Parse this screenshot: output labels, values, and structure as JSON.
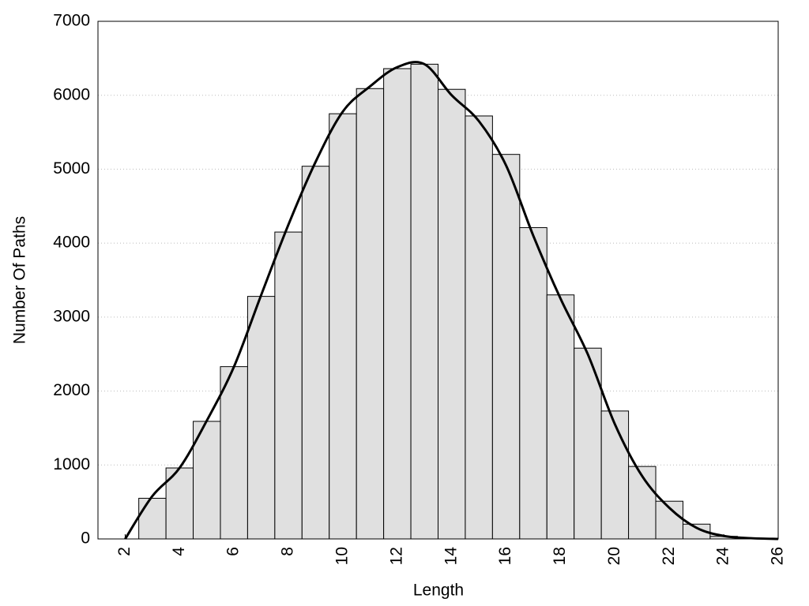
{
  "chart_data": {
    "type": "histogram",
    "xlabel": "Length",
    "ylabel": "Number Of Paths",
    "bins": [
      2.5,
      3.5,
      4.5,
      5.5,
      6.5,
      7.5,
      8.5,
      9.5,
      10.5,
      11.5,
      12.5,
      13.5,
      14.5,
      15.5,
      16.5,
      17.5,
      18.5,
      19.5,
      20.5,
      21.5,
      22.5,
      23.5,
      24.5,
      25.5
    ],
    "counts": [
      550,
      960,
      1590,
      2330,
      3280,
      4150,
      5040,
      5750,
      6090,
      6360,
      6420,
      6080,
      5720,
      5200,
      4210,
      3300,
      2580,
      1730,
      980,
      510,
      200,
      35,
      10
    ],
    "color": "#e0e0e0",
    "lines": [
      {
        "color": "#000000",
        "x": [
          2,
          3,
          4,
          5,
          6,
          7,
          8,
          9,
          10,
          11,
          12,
          13,
          14,
          15,
          16,
          17,
          18,
          19,
          20,
          21,
          22,
          23,
          24,
          25,
          26
        ],
        "values": [
          0,
          580,
          960,
          1600,
          2330,
          3300,
          4250,
          5100,
          5780,
          6120,
          6380,
          6420,
          6000,
          5650,
          5050,
          4100,
          3250,
          2500,
          1550,
          850,
          420,
          150,
          40,
          10,
          0
        ]
      }
    ],
    "xlim": [
      1,
      26
    ],
    "xticks": [
      2,
      4,
      6,
      8,
      10,
      12,
      14,
      16,
      18,
      20,
      22,
      24,
      26
    ],
    "ylim": [
      0,
      7000
    ],
    "yticks": [
      0,
      1000,
      2000,
      3000,
      4000,
      5000,
      6000,
      7000
    ],
    "grid": true
  }
}
